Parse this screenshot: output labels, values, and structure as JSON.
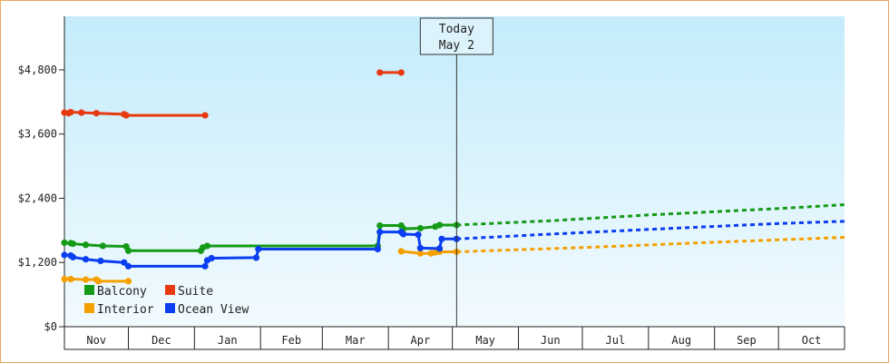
{
  "chart_data": {
    "type": "line",
    "title": "",
    "xlabel": "",
    "ylabel": "",
    "ylim": [
      0,
      5800
    ],
    "y_ticks": [
      {
        "value": 0,
        "label": "$0"
      },
      {
        "value": 1200,
        "label": "$1,200"
      },
      {
        "value": 2400,
        "label": "$2,400"
      },
      {
        "value": 3600,
        "label": "$3,600"
      },
      {
        "value": 4800,
        "label": "$4,800"
      }
    ],
    "x_domain": [
      "2023-10-31",
      "2024-10-31"
    ],
    "months": [
      {
        "label": "Nov",
        "start": "2023-10-31",
        "end": "2023-11-30"
      },
      {
        "label": "Dec",
        "start": "2023-11-30",
        "end": "2023-12-31"
      },
      {
        "label": "Jan",
        "start": "2023-12-31",
        "end": "2024-01-31"
      },
      {
        "label": "Feb",
        "start": "2024-01-31",
        "end": "2024-02-29"
      },
      {
        "label": "Mar",
        "start": "2024-02-29",
        "end": "2024-03-31"
      },
      {
        "label": "Apr",
        "start": "2024-03-31",
        "end": "2024-04-30"
      },
      {
        "label": "May",
        "start": "2024-04-30",
        "end": "2024-05-31"
      },
      {
        "label": "Jun",
        "start": "2024-05-31",
        "end": "2024-06-30"
      },
      {
        "label": "Jul",
        "start": "2024-06-30",
        "end": "2024-07-31"
      },
      {
        "label": "Aug",
        "start": "2024-07-31",
        "end": "2024-08-31"
      },
      {
        "label": "Sep",
        "start": "2024-08-31",
        "end": "2024-09-30"
      },
      {
        "label": "Oct",
        "start": "2024-09-30",
        "end": "2024-10-31"
      }
    ],
    "today": {
      "line1": "Today",
      "line2": "May 2",
      "date": "2024-05-02"
    },
    "legend_placement": "bottom-left",
    "background_gradient": [
      "#c4ecfb",
      "#f2fafe"
    ],
    "series": [
      {
        "name": "Balcony",
        "color": "#159a16",
        "segments": [
          [
            [
              "2023-10-31",
              1570
            ],
            [
              "2023-11-03",
              1560
            ],
            [
              "2023-11-04",
              1550
            ],
            [
              "2023-11-10",
              1530
            ],
            [
              "2023-11-18",
              1510
            ],
            [
              "2023-11-29",
              1500
            ],
            [
              "2023-11-30",
              1420
            ],
            [
              "2024-01-03",
              1420
            ],
            [
              "2024-01-04",
              1480
            ],
            [
              "2024-01-06",
              1510
            ],
            [
              "2024-03-26",
              1510
            ],
            [
              "2024-03-27",
              1890
            ],
            [
              "2024-04-06",
              1890
            ],
            [
              "2024-04-07",
              1830
            ],
            [
              "2024-04-15",
              1840
            ],
            [
              "2024-04-22",
              1870
            ],
            [
              "2024-04-24",
              1900
            ],
            [
              "2024-05-02",
              1900
            ]
          ]
        ],
        "projection": [
          [
            "2024-05-02",
            1900
          ],
          [
            "2024-06-15",
            1980
          ],
          [
            "2024-08-01",
            2090
          ],
          [
            "2024-10-01",
            2210
          ],
          [
            "2024-10-31",
            2280
          ]
        ]
      },
      {
        "name": "Suite",
        "color": "#e83a10",
        "segments": [
          [
            [
              "2023-10-31",
              4000
            ],
            [
              "2023-11-02",
              3990
            ],
            [
              "2023-11-03",
              4010
            ],
            [
              "2023-11-08",
              4000
            ],
            [
              "2023-11-15",
              3990
            ],
            [
              "2023-11-28",
              3970
            ],
            [
              "2023-11-29",
              3950
            ],
            [
              "2024-01-05",
              3950
            ]
          ],
          [
            [
              "2024-03-27",
              4750
            ],
            [
              "2024-04-06",
              4750
            ]
          ]
        ],
        "projection": []
      },
      {
        "name": "Interior",
        "color": "#f5a000",
        "segments": [
          [
            [
              "2023-10-31",
              890
            ],
            [
              "2023-11-03",
              890
            ],
            [
              "2023-11-10",
              880
            ],
            [
              "2023-11-15",
              880
            ],
            [
              "2023-11-16",
              850
            ],
            [
              "2023-11-30",
              850
            ]
          ],
          [
            [
              "2024-04-06",
              1410
            ],
            [
              "2024-04-15",
              1370
            ],
            [
              "2024-04-20",
              1370
            ],
            [
              "2024-04-22",
              1390
            ],
            [
              "2024-04-24",
              1400
            ],
            [
              "2024-05-02",
              1400
            ]
          ]
        ],
        "projection": [
          [
            "2024-05-02",
            1400
          ],
          [
            "2024-07-01",
            1480
          ],
          [
            "2024-09-01",
            1580
          ],
          [
            "2024-10-31",
            1670
          ]
        ]
      },
      {
        "name": "Ocean View",
        "color": "#0a3ef0",
        "segments": [
          [
            [
              "2023-10-31",
              1340
            ],
            [
              "2023-11-03",
              1330
            ],
            [
              "2023-11-04",
              1300
            ],
            [
              "2023-11-10",
              1260
            ],
            [
              "2023-11-17",
              1230
            ],
            [
              "2023-11-28",
              1200
            ],
            [
              "2023-11-30",
              1130
            ],
            [
              "2024-01-05",
              1130
            ],
            [
              "2024-01-06",
              1240
            ],
            [
              "2024-01-08",
              1280
            ],
            [
              "2024-01-29",
              1290
            ],
            [
              "2024-01-30",
              1450
            ],
            [
              "2024-03-26",
              1450
            ],
            [
              "2024-03-27",
              1770
            ],
            [
              "2024-04-06",
              1770
            ],
            [
              "2024-04-07",
              1730
            ],
            [
              "2024-04-14",
              1720
            ],
            [
              "2024-04-15",
              1470
            ],
            [
              "2024-04-24",
              1460
            ],
            [
              "2024-04-25",
              1640
            ],
            [
              "2024-05-02",
              1640
            ]
          ]
        ],
        "projection": [
          [
            "2024-05-02",
            1640
          ],
          [
            "2024-06-15",
            1730
          ],
          [
            "2024-08-01",
            1820
          ],
          [
            "2024-10-01",
            1930
          ],
          [
            "2024-10-31",
            1970
          ]
        ]
      }
    ]
  }
}
